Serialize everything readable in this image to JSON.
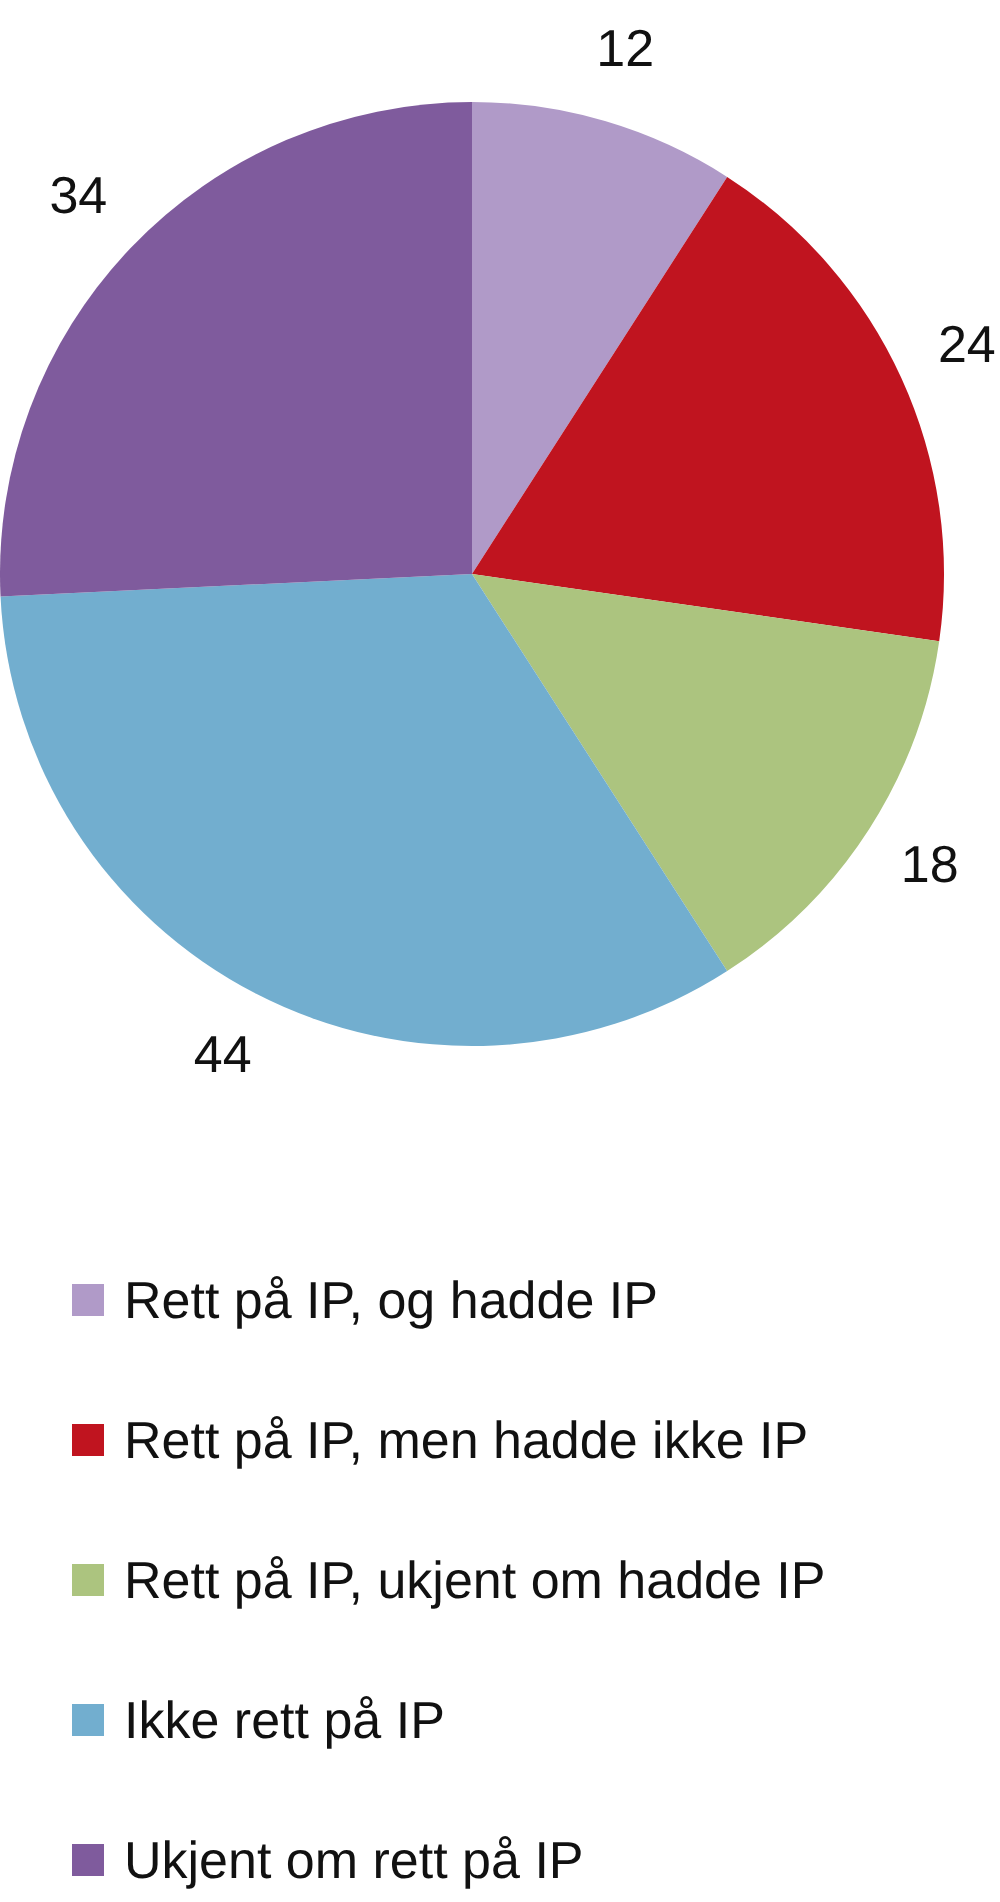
{
  "chart_data": {
    "type": "pie",
    "categories": [
      "Rett på IP, og hadde IP",
      "Rett på IP, men hadde ikke IP",
      "Rett på IP, ukjent om hadde IP",
      "Ikke rett på IP",
      "Ukjent om rett på IP"
    ],
    "values": [
      12,
      24,
      18,
      44,
      34
    ],
    "colors": [
      "#b09ac8",
      "#c0141f",
      "#acc47f",
      "#72aecf",
      "#7f5b9d"
    ],
    "data_labels": true,
    "legend": "bottom"
  }
}
